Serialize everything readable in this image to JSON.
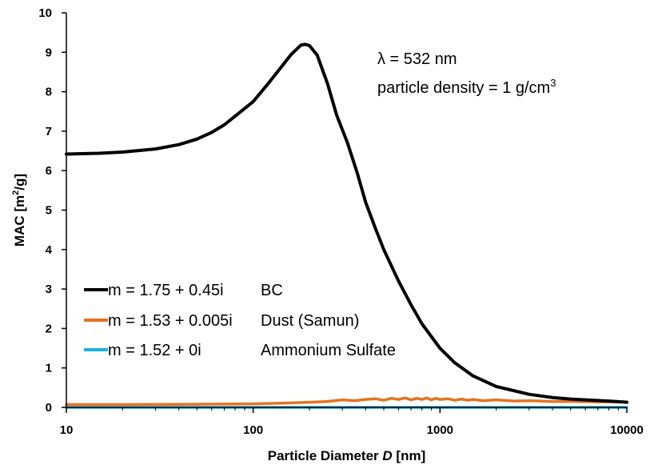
{
  "chart_data": {
    "type": "line",
    "xlabel": "Particle Diameter",
    "xlabel_var": "D",
    "xlabel_unit": "[nm]",
    "ylabel_prefix": "MAC  [m",
    "ylabel_sup": "2",
    "ylabel_suffix": "/g]",
    "x_scale": "log",
    "xlim": [
      10,
      10000
    ],
    "ylim": [
      0,
      10
    ],
    "x_ticks": [
      10,
      100,
      1000,
      10000
    ],
    "x_tick_labels": [
      "10",
      "100",
      "1000",
      "10000"
    ],
    "y_ticks": [
      0,
      1,
      2,
      3,
      4,
      5,
      6,
      7,
      8,
      9,
      10
    ],
    "y_tick_labels": [
      "0",
      "1",
      "2",
      "3",
      "4",
      "5",
      "6",
      "7",
      "8",
      "9",
      "10"
    ],
    "grid": false,
    "legend_position": "lower-left",
    "annotation": {
      "line1": "λ = 532 nm",
      "line2_prefix": "particle density = 1 g/cm",
      "line2_sup": "3"
    },
    "series": [
      {
        "name": "m = 1.75 + 0.45i",
        "label": "BC",
        "color": "#000000",
        "x": [
          10,
          15,
          20,
          30,
          40,
          50,
          60,
          70,
          80,
          100,
          120,
          140,
          160,
          180,
          190,
          200,
          220,
          250,
          280,
          320,
          360,
          400,
          450,
          500,
          600,
          700,
          800,
          1000,
          1200,
          1500,
          2000,
          3000,
          4000,
          5000,
          6000,
          8000,
          10000
        ],
        "y": [
          6.42,
          6.44,
          6.47,
          6.55,
          6.66,
          6.8,
          6.97,
          7.16,
          7.38,
          7.75,
          8.2,
          8.6,
          8.95,
          9.18,
          9.2,
          9.17,
          8.93,
          8.2,
          7.4,
          6.7,
          5.95,
          5.2,
          4.55,
          4.0,
          3.2,
          2.6,
          2.12,
          1.5,
          1.13,
          0.8,
          0.53,
          0.33,
          0.25,
          0.21,
          0.19,
          0.16,
          0.13
        ]
      },
      {
        "name": "m = 1.53 + 0.005i",
        "label": "Dust (Samun)",
        "color": "#e67320",
        "x": [
          10,
          20,
          50,
          100,
          150,
          200,
          250,
          300,
          350,
          400,
          450,
          500,
          550,
          600,
          650,
          700,
          750,
          800,
          850,
          900,
          950,
          1000,
          1100,
          1200,
          1300,
          1400,
          1500,
          1700,
          2000,
          2500,
          3000,
          4000,
          5000,
          7000,
          10000
        ],
        "y": [
          0.07,
          0.07,
          0.08,
          0.09,
          0.11,
          0.13,
          0.15,
          0.19,
          0.17,
          0.2,
          0.22,
          0.18,
          0.23,
          0.2,
          0.24,
          0.19,
          0.23,
          0.2,
          0.24,
          0.19,
          0.23,
          0.2,
          0.22,
          0.18,
          0.21,
          0.18,
          0.2,
          0.17,
          0.19,
          0.16,
          0.17,
          0.15,
          0.15,
          0.14,
          0.14
        ]
      },
      {
        "name": "m = 1.52 + 0i",
        "label": "Ammonium Sulfate",
        "color": "#1ab0e6",
        "x": [
          10,
          100,
          1000,
          10000
        ],
        "y": [
          0.0,
          0.0,
          0.0,
          0.0
        ]
      }
    ]
  }
}
